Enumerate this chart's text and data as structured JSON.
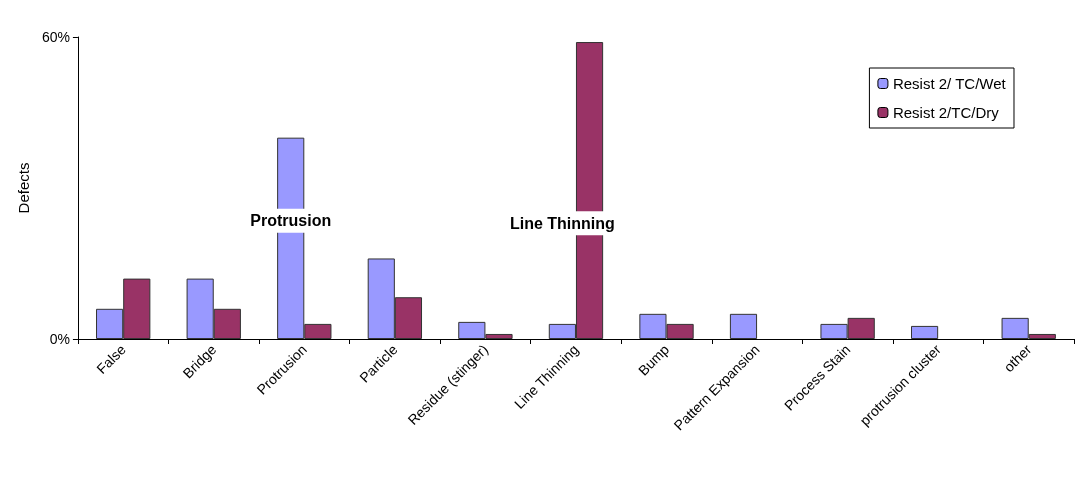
{
  "chart_data": {
    "type": "bar",
    "ylabel": "Defects",
    "categories": [
      "False",
      "Bridge",
      "Protrusion",
      "Particle",
      "Residue (stinger)",
      "Line Thinning",
      "Bump",
      "Pattern Expansion",
      "Process Stain",
      "protrusion cluster",
      "other"
    ],
    "series": [
      {
        "name": "Resist 2/ TC/Wet",
        "color": "#9999ff",
        "values": [
          6,
          12,
          40,
          16,
          3.4,
          3,
          5,
          5,
          3,
          2.6,
          4.2
        ]
      },
      {
        "name": "Resist 2/TC/Dry",
        "color": "#993366",
        "values": [
          12,
          6,
          3,
          8.3,
          1,
          59,
          3,
          null,
          4.2,
          null,
          1
        ]
      }
    ],
    "ylim": [
      0,
      60
    ],
    "yticks": [
      {
        "value": 0,
        "label": "0%"
      },
      {
        "value": 60,
        "label": "60%"
      }
    ],
    "grid": false,
    "legend": "top right",
    "annotations": [
      {
        "text": "Protrusion",
        "x": "Protrusion",
        "y": 23.5
      },
      {
        "text": "Line Thinning",
        "x": "Line Thinning",
        "y": 23
      }
    ]
  }
}
